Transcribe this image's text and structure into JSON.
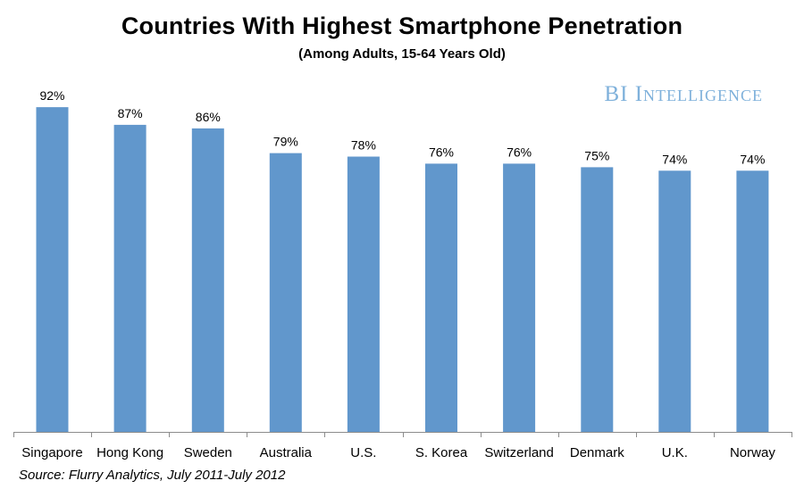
{
  "chart_data": {
    "type": "bar",
    "title": "Countries With Highest Smartphone Penetration",
    "subtitle": "(Among Adults, 15-64 Years Old)",
    "categories": [
      "Singapore",
      "Hong Kong",
      "Sweden",
      "Australia",
      "U.S.",
      "S. Korea",
      "Switzerland",
      "Denmark",
      "U.K.",
      "Norway"
    ],
    "values": [
      92,
      87,
      86,
      79,
      78,
      76,
      76,
      75,
      74,
      74
    ],
    "value_labels": [
      "92%",
      "87%",
      "86%",
      "79%",
      "78%",
      "76%",
      "76%",
      "75%",
      "74%",
      "74%"
    ],
    "ylim": [
      0,
      100
    ],
    "xlabel": "",
    "ylabel": "",
    "grid": false,
    "bar_color": "#6197cc"
  },
  "branding": {
    "bi": "BI",
    "intelligence": "Intelligence",
    "color": "#7fb1db"
  },
  "source": "Source: Flurry Analytics, July 2011-July 2012"
}
